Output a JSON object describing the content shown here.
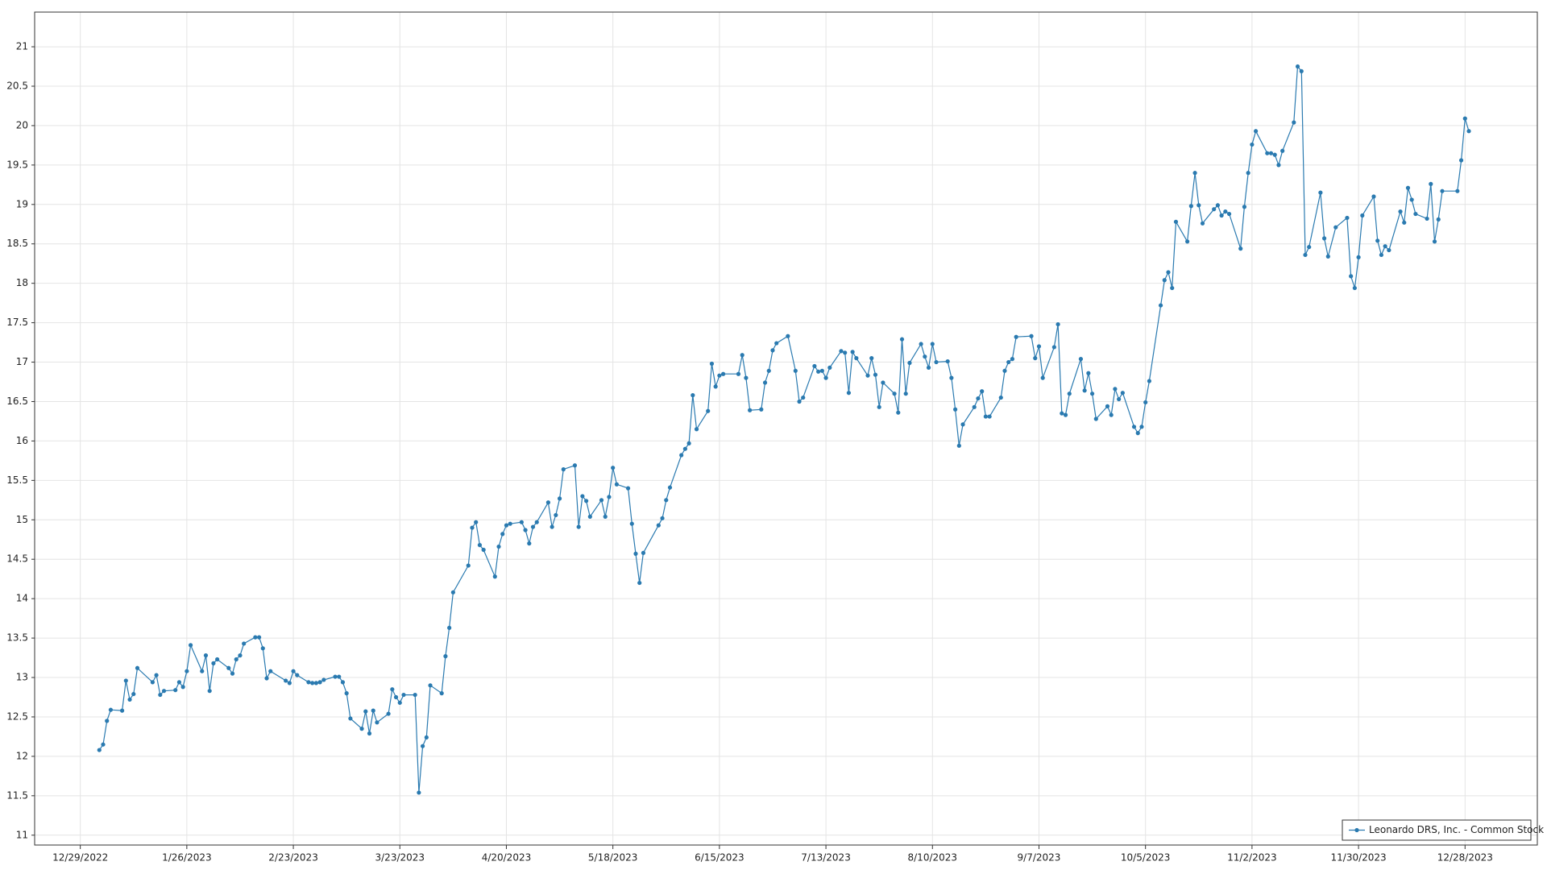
{
  "chart_data": {
    "type": "line",
    "x": [
      "2023-01-03",
      "2023-01-04",
      "2023-01-05",
      "2023-01-06",
      "2023-01-09",
      "2023-01-10",
      "2023-01-11",
      "2023-01-12",
      "2023-01-13",
      "2023-01-17",
      "2023-01-18",
      "2023-01-19",
      "2023-01-20",
      "2023-01-23",
      "2023-01-24",
      "2023-01-25",
      "2023-01-26",
      "2023-01-27",
      "2023-01-30",
      "2023-01-31",
      "2023-02-01",
      "2023-02-02",
      "2023-02-03",
      "2023-02-06",
      "2023-02-07",
      "2023-02-08",
      "2023-02-09",
      "2023-02-10",
      "2023-02-13",
      "2023-02-14",
      "2023-02-15",
      "2023-02-16",
      "2023-02-17",
      "2023-02-21",
      "2023-02-22",
      "2023-02-23",
      "2023-02-24",
      "2023-02-27",
      "2023-02-28",
      "2023-03-01",
      "2023-03-02",
      "2023-03-03",
      "2023-03-06",
      "2023-03-07",
      "2023-03-08",
      "2023-03-09",
      "2023-03-10",
      "2023-03-13",
      "2023-03-14",
      "2023-03-15",
      "2023-03-16",
      "2023-03-17",
      "2023-03-20",
      "2023-03-21",
      "2023-03-22",
      "2023-03-23",
      "2023-03-24",
      "2023-03-27",
      "2023-03-28",
      "2023-03-29",
      "2023-03-30",
      "2023-03-31",
      "2023-04-03",
      "2023-04-04",
      "2023-04-05",
      "2023-04-06",
      "2023-04-10",
      "2023-04-11",
      "2023-04-12",
      "2023-04-13",
      "2023-04-14",
      "2023-04-17",
      "2023-04-18",
      "2023-04-19",
      "2023-04-20",
      "2023-04-21",
      "2023-04-24",
      "2023-04-25",
      "2023-04-26",
      "2023-04-27",
      "2023-04-28",
      "2023-05-01",
      "2023-05-02",
      "2023-05-03",
      "2023-05-04",
      "2023-05-05",
      "2023-05-08",
      "2023-05-09",
      "2023-05-10",
      "2023-05-11",
      "2023-05-12",
      "2023-05-15",
      "2023-05-16",
      "2023-05-17",
      "2023-05-18",
      "2023-05-19",
      "2023-05-22",
      "2023-05-23",
      "2023-05-24",
      "2023-05-25",
      "2023-05-26",
      "2023-05-30",
      "2023-05-31",
      "2023-06-01",
      "2023-06-02",
      "2023-06-05",
      "2023-06-06",
      "2023-06-07",
      "2023-06-08",
      "2023-06-09",
      "2023-06-12",
      "2023-06-13",
      "2023-06-14",
      "2023-06-15",
      "2023-06-16",
      "2023-06-20",
      "2023-06-21",
      "2023-06-22",
      "2023-06-23",
      "2023-06-26",
      "2023-06-27",
      "2023-06-28",
      "2023-06-29",
      "2023-06-30",
      "2023-07-03",
      "2023-07-05",
      "2023-07-06",
      "2023-07-07",
      "2023-07-10",
      "2023-07-11",
      "2023-07-12",
      "2023-07-13",
      "2023-07-14",
      "2023-07-17",
      "2023-07-18",
      "2023-07-19",
      "2023-07-20",
      "2023-07-21",
      "2023-07-24",
      "2023-07-25",
      "2023-07-26",
      "2023-07-27",
      "2023-07-28",
      "2023-07-31",
      "2023-08-01",
      "2023-08-02",
      "2023-08-03",
      "2023-08-04",
      "2023-08-07",
      "2023-08-08",
      "2023-08-09",
      "2023-08-10",
      "2023-08-11",
      "2023-08-14",
      "2023-08-15",
      "2023-08-16",
      "2023-08-17",
      "2023-08-18",
      "2023-08-21",
      "2023-08-22",
      "2023-08-23",
      "2023-08-24",
      "2023-08-25",
      "2023-08-28",
      "2023-08-29",
      "2023-08-30",
      "2023-08-31",
      "2023-09-01",
      "2023-09-05",
      "2023-09-06",
      "2023-09-07",
      "2023-09-08",
      "2023-09-11",
      "2023-09-12",
      "2023-09-13",
      "2023-09-14",
      "2023-09-15",
      "2023-09-18",
      "2023-09-19",
      "2023-09-20",
      "2023-09-21",
      "2023-09-22",
      "2023-09-25",
      "2023-09-26",
      "2023-09-27",
      "2023-09-28",
      "2023-09-29",
      "2023-10-02",
      "2023-10-03",
      "2023-10-04",
      "2023-10-05",
      "2023-10-06",
      "2023-10-09",
      "2023-10-10",
      "2023-10-11",
      "2023-10-12",
      "2023-10-13",
      "2023-10-16",
      "2023-10-17",
      "2023-10-18",
      "2023-10-19",
      "2023-10-20",
      "2023-10-23",
      "2023-10-24",
      "2023-10-25",
      "2023-10-26",
      "2023-10-27",
      "2023-10-30",
      "2023-10-31",
      "2023-11-01",
      "2023-11-02",
      "2023-11-03",
      "2023-11-06",
      "2023-11-07",
      "2023-11-08",
      "2023-11-09",
      "2023-11-10",
      "2023-11-13",
      "2023-11-14",
      "2023-11-15",
      "2023-11-16",
      "2023-11-17",
      "2023-11-20",
      "2023-11-21",
      "2023-11-22",
      "2023-11-24",
      "2023-11-27",
      "2023-11-28",
      "2023-11-29",
      "2023-11-30",
      "2023-12-01",
      "2023-12-04",
      "2023-12-05",
      "2023-12-06",
      "2023-12-07",
      "2023-12-08",
      "2023-12-11",
      "2023-12-12",
      "2023-12-13",
      "2023-12-14",
      "2023-12-15",
      "2023-12-18",
      "2023-12-19",
      "2023-12-20",
      "2023-12-21",
      "2023-12-22",
      "2023-12-26",
      "2023-12-27",
      "2023-12-28",
      "2023-12-29"
    ],
    "series": [
      {
        "name": "Leonardo DRS, Inc. - Common Stock",
        "color": "#2a7ab0",
        "values": [
          12.08,
          12.15,
          12.45,
          12.59,
          12.58,
          12.96,
          12.72,
          12.79,
          13.12,
          12.94,
          13.03,
          12.78,
          12.83,
          12.84,
          12.94,
          12.88,
          13.08,
          13.41,
          13.08,
          13.28,
          12.83,
          13.18,
          13.23,
          13.12,
          13.05,
          13.23,
          13.28,
          13.43,
          13.51,
          13.51,
          13.37,
          12.99,
          13.08,
          12.96,
          12.93,
          13.08,
          13.03,
          12.94,
          12.93,
          12.93,
          12.94,
          12.97,
          13.01,
          13.01,
          12.94,
          12.8,
          12.48,
          12.35,
          12.57,
          12.29,
          12.58,
          12.43,
          12.54,
          12.85,
          12.75,
          12.68,
          12.78,
          12.78,
          11.54,
          12.13,
          12.24,
          12.9,
          12.8,
          13.27,
          13.63,
          14.08,
          14.42,
          14.9,
          14.97,
          14.68,
          14.62,
          14.28,
          14.66,
          14.82,
          14.93,
          14.95,
          14.97,
          14.87,
          14.7,
          14.91,
          14.97,
          15.22,
          14.91,
          15.06,
          15.27,
          15.64,
          15.69,
          14.91,
          15.3,
          15.24,
          15.04,
          15.25,
          15.04,
          15.29,
          15.66,
          15.45,
          15.4,
          14.95,
          14.57,
          14.2,
          14.58,
          14.93,
          15.02,
          15.25,
          15.41,
          15.82,
          15.9,
          15.97,
          16.58,
          16.15,
          16.38,
          16.98,
          16.69,
          16.83,
          16.85,
          16.85,
          17.09,
          16.8,
          16.39,
          16.4,
          16.74,
          16.89,
          17.15,
          17.24,
          17.33,
          16.89,
          16.5,
          16.55,
          16.95,
          16.88,
          16.89,
          16.8,
          16.93,
          17.14,
          17.12,
          16.61,
          17.13,
          17.05,
          16.83,
          17.05,
          16.84,
          16.43,
          16.74,
          16.6,
          16.36,
          17.29,
          16.6,
          16.99,
          17.23,
          17.07,
          16.93,
          17.23,
          17,
          17.01,
          16.8,
          16.4,
          15.94,
          16.21,
          16.43,
          16.54,
          16.63,
          16.31,
          16.31,
          16.55,
          16.89,
          17,
          17.04,
          17.32,
          17.33,
          17.05,
          17.2,
          16.8,
          17.19,
          17.48,
          16.35,
          16.33,
          16.6,
          17.04,
          16.64,
          16.86,
          16.6,
          16.28,
          16.44,
          16.33,
          16.66,
          16.53,
          16.61,
          16.18,
          16.1,
          16.18,
          16.49,
          16.76,
          17.72,
          18.04,
          18.14,
          17.94,
          18.78,
          18.53,
          18.98,
          19.4,
          18.99,
          18.76,
          18.94,
          18.99,
          18.86,
          18.91,
          18.88,
          18.44,
          18.97,
          19.4,
          19.76,
          19.93,
          19.65,
          19.65,
          19.63,
          19.5,
          19.68,
          20.04,
          20.75,
          20.69,
          18.36,
          18.46,
          19.15,
          18.57,
          18.34,
          18.71,
          18.83,
          18.09,
          17.94,
          18.33,
          18.86,
          19.1,
          18.54,
          18.36,
          18.47,
          18.42,
          18.91,
          18.77,
          19.21,
          19.06,
          18.88,
          18.82,
          19.26,
          18.53,
          18.81,
          19.17,
          19.17,
          19.56,
          20.09,
          19.93
        ]
      }
    ],
    "xlim": [
      "2022-12-17",
      "2024-01-16"
    ],
    "xticks": [
      {
        "value": "2022-12-29",
        "label": "12/29/2022"
      },
      {
        "value": "2023-01-26",
        "label": "1/26/2023"
      },
      {
        "value": "2023-02-23",
        "label": "2/23/2023"
      },
      {
        "value": "2023-03-23",
        "label": "3/23/2023"
      },
      {
        "value": "2023-04-20",
        "label": "4/20/2023"
      },
      {
        "value": "2023-05-18",
        "label": "5/18/2023"
      },
      {
        "value": "2023-06-15",
        "label": "6/15/2023"
      },
      {
        "value": "2023-07-13",
        "label": "7/13/2023"
      },
      {
        "value": "2023-08-10",
        "label": "8/10/2023"
      },
      {
        "value": "2023-09-07",
        "label": "9/7/2023"
      },
      {
        "value": "2023-10-05",
        "label": "10/5/2023"
      },
      {
        "value": "2023-11-02",
        "label": "11/2/2023"
      },
      {
        "value": "2023-11-30",
        "label": "11/30/2023"
      },
      {
        "value": "2023-12-28",
        "label": "12/28/2023"
      }
    ],
    "ylim": [
      10.875,
      21.44
    ],
    "yticks": [
      11,
      11.5,
      12,
      12.5,
      13,
      13.5,
      14,
      14.5,
      15,
      15.5,
      16,
      16.5,
      17,
      17.5,
      18,
      18.5,
      19,
      19.5,
      20,
      20.5,
      21
    ],
    "grid": true,
    "legend": "lower right"
  }
}
